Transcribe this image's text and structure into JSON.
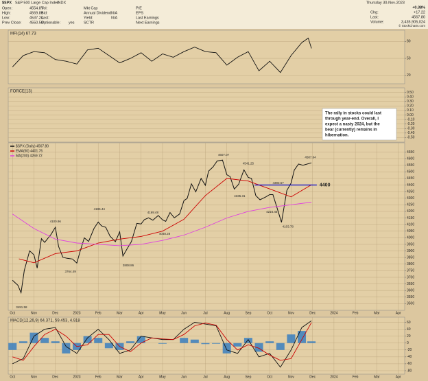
{
  "header": {
    "symbol": "$SPX",
    "name": "S&P 500 Large Cap Index",
    "exchange": "INDX",
    "columns": [
      [
        {
          "label": "Open:",
          "value": "4554.87"
        },
        {
          "label": "High:",
          "value": "4569.89"
        },
        {
          "label": "Low:",
          "value": "4537.24"
        },
        {
          "label": "Prev Close:",
          "value": "4550.58"
        }
      ],
      [
        {
          "label": "Vol:"
        },
        {
          "label": "Bid:"
        },
        {
          "label": "Last:"
        },
        {
          "label": "Optionable:",
          "value": "yes"
        }
      ],
      [
        {
          "label": "Mkt Cap"
        },
        {
          "label": "Annual Dividend:",
          "value": "N/A"
        },
        {
          "label": "Yield:",
          "value": "N/A"
        },
        {
          "label": "SCTR"
        }
      ],
      [
        {
          "label": "P/E"
        },
        {
          "label": "EPS"
        },
        {
          "label": "Last Earnings"
        },
        {
          "label": "Next Earnings"
        }
      ]
    ],
    "date": "Thursday 30-Nov-2023",
    "change_pct": "+0.38%",
    "right": [
      {
        "label": "Chg:",
        "value": "+17.22"
      },
      {
        "label": "Last:",
        "value": "4567.80"
      },
      {
        "label": "Volume:",
        "value": "3,435,905,024"
      }
    ],
    "credit": "© StockCharts.com"
  },
  "chart_data": [
    {
      "type": "line",
      "title": "MFI(14) 67.73",
      "xlim": [
        -0.2,
        18.3
      ],
      "ylim": [
        5,
        100
      ],
      "yticks": [
        80,
        50,
        20
      ],
      "grid": true,
      "x": [
        0,
        0.5,
        1,
        1.5,
        2,
        2.5,
        3,
        3.5,
        4,
        4.5,
        5,
        5.5,
        6,
        6.5,
        7,
        7.5,
        8,
        8.5,
        9,
        9.5,
        10,
        10.5,
        11,
        11.5,
        12,
        12.5,
        13,
        13.5,
        13.8,
        13.95
      ],
      "series": [
        {
          "color": "#111111",
          "values": [
            35,
            55,
            62,
            60,
            48,
            45,
            40,
            65,
            68,
            55,
            42,
            50,
            60,
            45,
            58,
            52,
            62,
            70,
            62,
            60,
            38,
            52,
            62,
            28,
            45,
            25,
            55,
            78,
            86,
            67.73
          ]
        }
      ]
    },
    {
      "type": "line",
      "title": "FORCE(13)",
      "ylim": [
        -0.6,
        0.6
      ],
      "grid": true,
      "yticks": [
        {
          "value": 0.5,
          "label": "0.50"
        },
        {
          "value": 0.4,
          "label": "0.40"
        },
        {
          "value": 0.3,
          "label": "0.30"
        },
        {
          "value": 0.2,
          "label": "0.20"
        },
        {
          "value": 0.1,
          "label": "0.10"
        },
        {
          "value": 0,
          "label": "0.00"
        },
        {
          "value": -0.1,
          "label": "-0.10"
        },
        {
          "value": -0.2,
          "label": "-0.20"
        },
        {
          "value": -0.3,
          "label": "-0.30"
        },
        {
          "value": -0.4,
          "label": "-0.40"
        },
        {
          "value": -0.5,
          "label": "-0.50"
        }
      ],
      "series": []
    },
    {
      "type": "line",
      "xlim": [
        -0.2,
        18.3
      ],
      "ylim": [
        3450,
        4720
      ],
      "grid": true,
      "yticks": [
        4650,
        4600,
        4550,
        4500,
        4450,
        4400,
        4350,
        4300,
        4250,
        4200,
        4150,
        4100,
        4050,
        4000,
        3950,
        3900,
        3850,
        3800,
        3750,
        3700,
        3650,
        3600,
        3550,
        3500
      ],
      "xticks": [
        {
          "value": 0,
          "label": "Oct"
        },
        {
          "value": 1,
          "label": "Nov"
        },
        {
          "value": 2,
          "label": "Dec"
        },
        {
          "value": 3,
          "label": "2023"
        },
        {
          "value": 4,
          "label": "Feb"
        },
        {
          "value": 5,
          "label": "Mar"
        },
        {
          "value": 6,
          "label": "Apr"
        },
        {
          "value": 7,
          "label": "May"
        },
        {
          "value": 8,
          "label": "Jun"
        },
        {
          "value": 9,
          "label": "Jul"
        },
        {
          "value": 10,
          "label": "Aug"
        },
        {
          "value": 11,
          "label": "Sep"
        },
        {
          "value": 12,
          "label": "Oct"
        },
        {
          "value": 13,
          "label": "Nov"
        },
        {
          "value": 14,
          "label": "Dec"
        },
        {
          "value": 15,
          "label": "2024"
        },
        {
          "value": 16,
          "label": "Feb"
        },
        {
          "value": 17,
          "label": "Mar"
        },
        {
          "value": 18,
          "label": "Apr"
        }
      ],
      "x": [
        0,
        0.25,
        0.4,
        0.55,
        0.8,
        1,
        1.15,
        1.35,
        1.5,
        1.8,
        2,
        2.15,
        2.35,
        2.55,
        2.8,
        3,
        3.15,
        3.35,
        3.55,
        3.8,
        4,
        4.15,
        4.35,
        4.55,
        4.8,
        5,
        5.15,
        5.35,
        5.55,
        5.8,
        6,
        6.15,
        6.35,
        6.55,
        6.8,
        7,
        7.15,
        7.35,
        7.55,
        7.8,
        8,
        8.15,
        8.35,
        8.55,
        8.8,
        9,
        9.15,
        9.35,
        9.55,
        9.8,
        10,
        10.15,
        10.35,
        10.55,
        10.8,
        11,
        11.15,
        11.35,
        11.55,
        11.8,
        12,
        12.15,
        12.35,
        12.55,
        12.8,
        13,
        13.15,
        13.35,
        13.55,
        13.95
      ],
      "series": [
        {
          "name": "$SPX (Daily) 4567.80",
          "color": "#111111",
          "values": [
            3678,
            3640,
            3583,
            3752,
            3901,
            3871,
            3770,
            3993,
            3965,
            4026,
            4080,
            3934,
            3852,
            3844,
            3839,
            3808,
            3895,
            3999,
            3972,
            4070,
            4119,
            4090,
            4079,
            4012,
            3970,
            4045,
            3861,
            3917,
            3971,
            4109,
            4105,
            4137,
            4151,
            4133,
            4169,
            4136,
            4124,
            4191,
            4151,
            4180,
            4282,
            4298,
            4409,
            4348,
            4450,
            4398,
            4505,
            4536,
            4582,
            4589,
            4478,
            4464,
            4369,
            4405,
            4515,
            4457,
            4450,
            4320,
            4288,
            4308,
            4327,
            4327,
            4224,
            4117,
            4358,
            4415,
            4514,
            4559,
            4550,
            4567.8
          ]
        },
        {
          "name": "EMA(50) 4401.76",
          "color": "#cc0000",
          "x": [
            0.3,
            1,
            2,
            3,
            4,
            5,
            6,
            7,
            8,
            9,
            10,
            11,
            12,
            13,
            13.95
          ],
          "values": [
            3840,
            3810,
            3880,
            3900,
            3960,
            3990,
            4010,
            4050,
            4140,
            4320,
            4450,
            4430,
            4370,
            4310,
            4401.76
          ]
        },
        {
          "name": "MA(200) 4269.72",
          "color": "#e040e0",
          "x": [
            0,
            1,
            2,
            3,
            4,
            5,
            6,
            7,
            8,
            9,
            10,
            11,
            12,
            13,
            13.95
          ],
          "values": [
            4180,
            4070,
            3990,
            3960,
            3950,
            3940,
            3950,
            3980,
            4020,
            4080,
            4150,
            4200,
            4230,
            4250,
            4269.72
          ]
        }
      ],
      "annotations": [
        {
          "x": 0.42,
          "value": 3491.58
        },
        {
          "x": 2.0,
          "value": 4100.96
        },
        {
          "x": 2.7,
          "value": 3764.49
        },
        {
          "x": 4.05,
          "value": 4195.44
        },
        {
          "x": 5.4,
          "value": 3808.86
        },
        {
          "x": 6.55,
          "value": 4169.48
        },
        {
          "x": 7.1,
          "value": 4048.28
        },
        {
          "x": 9.85,
          "value": 4607.07
        },
        {
          "x": 10.6,
          "value": 4335.31
        },
        {
          "x": 11.0,
          "value": 4541.25
        },
        {
          "x": 12.4,
          "value": 4393.57
        },
        {
          "x": 12.1,
          "value": 4216.45
        },
        {
          "x": 12.85,
          "value": 4103.78
        },
        {
          "x": 13.9,
          "value": 4587.64
        }
      ],
      "hline": {
        "value": 4400,
        "from": 11.3,
        "to": 14.2,
        "color": "#0000cc"
      },
      "note": [
        "The rally in stocks could last",
        "through year-end. Overall, I",
        "expect a nasty 2024, but the",
        "bear (currently) remains in",
        "hibernation."
      ]
    },
    {
      "type": "line",
      "title": "MACD(12,26,9) 64.371, 59.453, 4.918",
      "xlim": [
        -0.2,
        18.3
      ],
      "ylim": [
        -90,
        75
      ],
      "grid": true,
      "yticks": [
        60,
        40,
        20,
        0,
        -20,
        -40,
        -60,
        -80
      ],
      "xticks": [
        {
          "value": 0,
          "label": "Oct"
        },
        {
          "value": 1,
          "label": "Nov"
        },
        {
          "value": 2,
          "label": "Dec"
        },
        {
          "value": 3,
          "label": "2023"
        },
        {
          "value": 4,
          "label": "Feb"
        },
        {
          "value": 5,
          "label": "Mar"
        },
        {
          "value": 6,
          "label": "Apr"
        },
        {
          "value": 7,
          "label": "May"
        },
        {
          "value": 8,
          "label": "Jun"
        },
        {
          "value": 9,
          "label": "Jul"
        },
        {
          "value": 10,
          "label": "Aug"
        },
        {
          "value": 11,
          "label": "Sep"
        },
        {
          "value": 12,
          "label": "Oct"
        },
        {
          "value": 13,
          "label": "Nov"
        },
        {
          "value": 14,
          "label": "Dec"
        },
        {
          "value": 15,
          "label": "2024"
        },
        {
          "value": 16,
          "label": "Feb"
        },
        {
          "value": 17,
          "label": "Mar"
        },
        {
          "value": 18,
          "label": "Apr"
        }
      ],
      "x": [
        0,
        0.5,
        1,
        1.5,
        2,
        2.5,
        3,
        3.5,
        4,
        4.5,
        5,
        5.5,
        6,
        6.5,
        7,
        7.5,
        8,
        8.5,
        9,
        9.5,
        10,
        10.5,
        11,
        11.5,
        12,
        12.5,
        13,
        13.5,
        13.95
      ],
      "series": [
        {
          "type": "bar",
          "color": "#3a7fc0",
          "values": [
            -20,
            5,
            30,
            15,
            5,
            -30,
            -20,
            20,
            15,
            -15,
            -20,
            5,
            20,
            0,
            -2,
            0,
            15,
            10,
            -3,
            -2,
            -30,
            -10,
            15,
            -25,
            5,
            -20,
            25,
            35,
            4.918
          ]
        },
        {
          "color": "#111111",
          "values": [
            -60,
            -45,
            20,
            40,
            45,
            -10,
            -30,
            15,
            40,
            10,
            -30,
            -20,
            20,
            15,
            10,
            10,
            40,
            60,
            55,
            50,
            -20,
            -30,
            10,
            -40,
            -30,
            -70,
            -20,
            45,
            64.371
          ]
        },
        {
          "color": "#cc0000",
          "values": [
            -40,
            -50,
            -10,
            25,
            40,
            20,
            -10,
            -5,
            25,
            25,
            -10,
            -25,
            0,
            15,
            12,
            10,
            25,
            50,
            58,
            52,
            10,
            -20,
            -5,
            -15,
            -35,
            -50,
            -45,
            10,
            59.453
          ]
        }
      ]
    }
  ]
}
